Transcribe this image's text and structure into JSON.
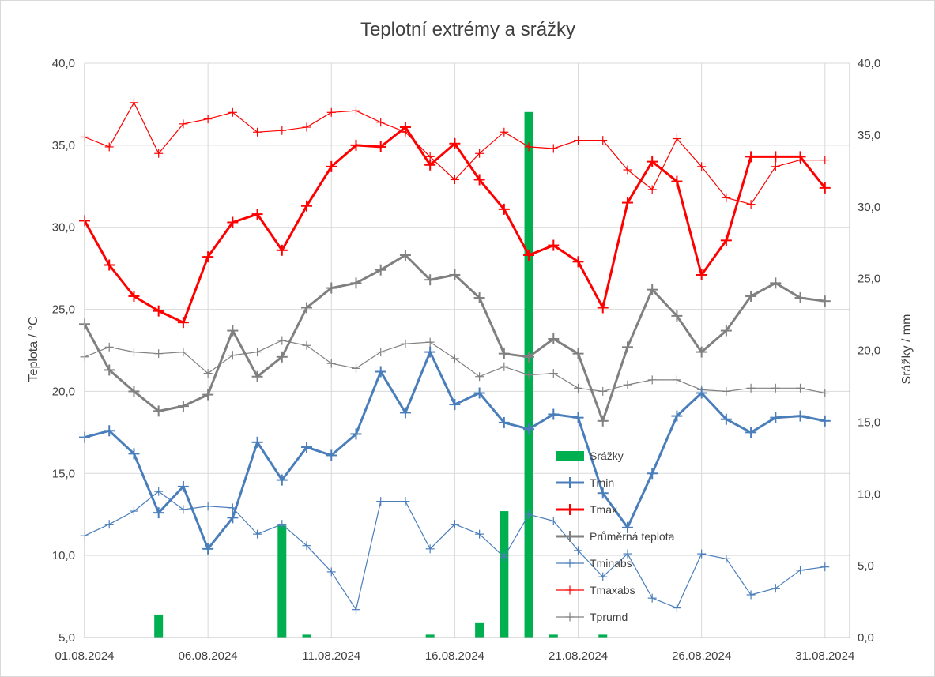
{
  "chart_data": {
    "type": "line",
    "title": "Teplotní extrémy a srážky",
    "ylabel": "Teplota / °C",
    "y2label": "Srážky / mm",
    "ylim": [
      5,
      40
    ],
    "y2lim": [
      0,
      40
    ],
    "yticks": [
      5,
      10,
      15,
      20,
      25,
      30,
      35,
      40
    ],
    "y_tick_labels": [
      "5,0",
      "10,0",
      "15,0",
      "20,0",
      "25,0",
      "30,0",
      "35,0",
      "40,0"
    ],
    "y2ticks": [
      0,
      5,
      10,
      15,
      20,
      25,
      30,
      35,
      40
    ],
    "y2_tick_labels": [
      "0,0",
      "5,0",
      "10,0",
      "15,0",
      "20,0",
      "25,0",
      "30,0",
      "35,0",
      "40,0"
    ],
    "x_tick_labels": [
      "01.08.2024",
      "06.08.2024",
      "11.08.2024",
      "16.08.2024",
      "21.08.2024",
      "26.08.2024",
      "31.08.2024"
    ],
    "x_tick_days": [
      1,
      6,
      11,
      16,
      21,
      26,
      31
    ],
    "days": [
      1,
      2,
      3,
      4,
      5,
      6,
      7,
      8,
      9,
      10,
      11,
      12,
      13,
      14,
      15,
      16,
      17,
      18,
      19,
      20,
      21,
      22,
      23,
      24,
      25,
      26,
      27,
      28,
      29,
      30,
      31
    ],
    "grid": true,
    "legend_position": "center-right",
    "precipitation": {
      "name": "Srážky",
      "axis": "right",
      "color": "#00b050",
      "values": [
        0,
        0,
        0,
        1.6,
        0,
        0,
        0,
        0,
        7.8,
        0.2,
        0,
        0,
        0,
        0,
        0.2,
        0,
        1.0,
        8.8,
        36.6,
        0.2,
        0,
        0.2,
        0,
        0,
        0,
        0,
        0,
        0,
        0,
        0,
        0
      ]
    },
    "series": [
      {
        "name": "Tmin",
        "color": "#4a7ebb",
        "width": 3,
        "marker": 14,
        "values": [
          17.2,
          17.6,
          16.2,
          12.6,
          14.2,
          10.4,
          12.3,
          16.9,
          14.6,
          16.6,
          16.1,
          17.4,
          21.2,
          18.7,
          22.4,
          19.2,
          19.9,
          18.1,
          17.7,
          18.6,
          18.4,
          13.8,
          11.7,
          15.0,
          18.5,
          19.9,
          18.3,
          17.5,
          18.4,
          18.5,
          18.2
        ]
      },
      {
        "name": "Tmax",
        "color": "#ff0000",
        "width": 3,
        "marker": 14,
        "values": [
          30.4,
          27.7,
          25.8,
          24.9,
          24.2,
          28.2,
          30.3,
          30.8,
          28.6,
          31.3,
          33.7,
          35.0,
          34.9,
          36.1,
          33.8,
          35.1,
          32.9,
          31.1,
          28.3,
          28.9,
          27.9,
          25.1,
          31.5,
          34.0,
          32.8,
          27.1,
          29.2,
          34.3,
          34.3,
          34.3,
          32.4
        ]
      },
      {
        "name": "Průměrná teplota",
        "color": "#808080",
        "width": 3,
        "marker": 14,
        "values": [
          24.1,
          21.3,
          20.0,
          18.8,
          19.1,
          19.8,
          23.7,
          20.9,
          22.1,
          25.1,
          26.3,
          26.6,
          27.4,
          28.3,
          26.8,
          27.1,
          25.7,
          22.3,
          22.1,
          23.2,
          22.3,
          18.2,
          22.7,
          26.2,
          24.6,
          22.4,
          23.7,
          25.8,
          26.6,
          25.7,
          25.5
        ]
      },
      {
        "name": "Tminabs",
        "color": "#4a7ebb",
        "width": 1.2,
        "marker": 11,
        "values": [
          11.2,
          11.9,
          12.7,
          13.9,
          12.8,
          13.0,
          12.9,
          11.3,
          11.9,
          10.6,
          9.0,
          6.7,
          13.3,
          13.3,
          10.4,
          11.9,
          11.3,
          9.9,
          12.5,
          12.1,
          10.3,
          8.7,
          10.1,
          7.4,
          6.8,
          10.1,
          9.8,
          7.6,
          8.0,
          9.1,
          9.3
        ]
      },
      {
        "name": "Tmaxabs",
        "color": "#ff0000",
        "width": 1.2,
        "marker": 11,
        "values": [
          35.5,
          34.9,
          37.6,
          34.5,
          36.3,
          36.6,
          37.0,
          35.8,
          35.9,
          36.1,
          37.0,
          37.1,
          36.4,
          35.8,
          34.3,
          32.9,
          34.5,
          35.8,
          34.9,
          34.8,
          35.3,
          35.3,
          33.5,
          32.3,
          35.4,
          33.7,
          31.8,
          31.4,
          33.7,
          34.1,
          34.1
        ]
      },
      {
        "name": "Tprumd",
        "color": "#808080",
        "width": 1.2,
        "marker": 11,
        "values": [
          22.1,
          22.7,
          22.4,
          22.3,
          22.4,
          21.1,
          22.2,
          22.4,
          23.1,
          22.8,
          21.7,
          21.4,
          22.4,
          22.9,
          23.0,
          22.0,
          20.9,
          21.5,
          21.0,
          21.1,
          20.2,
          20.0,
          20.4,
          20.7,
          20.7,
          20.1,
          20.0,
          20.2,
          20.2,
          20.2,
          19.9
        ]
      }
    ]
  }
}
